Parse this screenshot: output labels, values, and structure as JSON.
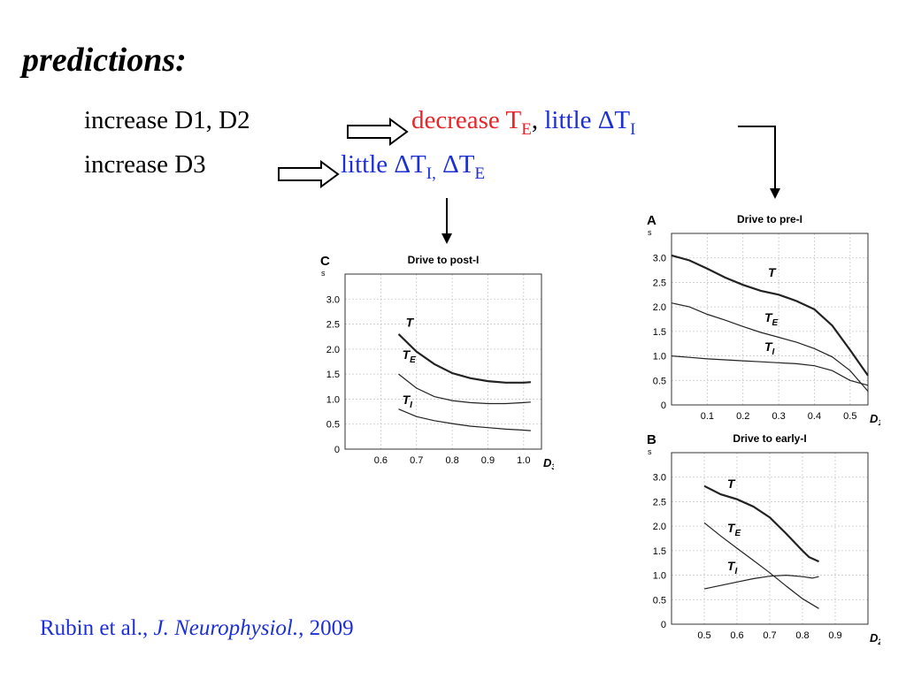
{
  "slide": {
    "heading": "predictions:",
    "bullet1": {
      "glyph": "",
      "text": "increase D1, D2",
      "result_red": "decrease T",
      "result_red_sub": "E",
      "comma": ",",
      "result_blue": "little ΔT",
      "result_blue_sub": "I"
    },
    "bullet2": {
      "glyph": "",
      "text": "increase D3",
      "result_blue1": "little  ΔT",
      "result_blue1_sub": "I,",
      "result_blue2": " ΔT",
      "result_blue2_sub": "E"
    },
    "citation": {
      "authors": "Rubin et al., ",
      "journal": "J. Neurophysiol.",
      "year": ", 2009"
    },
    "colors": {
      "red": "#e8262a",
      "blue": "#1d2fd6"
    }
  },
  "chart_data": [
    {
      "panel": "C",
      "type": "line",
      "title": "Drive to post-I",
      "ylabel": "s",
      "xlabel": "D",
      "xlabel_sub": "3",
      "xlim": [
        0.5,
        1.05
      ],
      "ylim": [
        0,
        3.5
      ],
      "xticks": [
        0.6,
        0.7,
        0.8,
        0.9,
        1.0
      ],
      "yticks": [
        0,
        0.5,
        1.0,
        1.5,
        2.0,
        2.5,
        3.0
      ],
      "grid": true,
      "series": [
        {
          "name": "T",
          "name_sub": "",
          "stroke": 2.2,
          "points": [
            [
              0.65,
              2.3
            ],
            [
              0.7,
              1.95
            ],
            [
              0.75,
              1.7
            ],
            [
              0.8,
              1.52
            ],
            [
              0.85,
              1.42
            ],
            [
              0.9,
              1.36
            ],
            [
              0.95,
              1.33
            ],
            [
              1.0,
              1.33
            ],
            [
              1.02,
              1.34
            ]
          ]
        },
        {
          "name": "T",
          "name_sub": "E",
          "stroke": 1.2,
          "points": [
            [
              0.65,
              1.5
            ],
            [
              0.7,
              1.22
            ],
            [
              0.75,
              1.05
            ],
            [
              0.8,
              0.97
            ],
            [
              0.85,
              0.93
            ],
            [
              0.9,
              0.91
            ],
            [
              0.95,
              0.91
            ],
            [
              1.0,
              0.93
            ],
            [
              1.02,
              0.94
            ]
          ]
        },
        {
          "name": "T",
          "name_sub": "I",
          "stroke": 1.2,
          "points": [
            [
              0.65,
              0.8
            ],
            [
              0.7,
              0.65
            ],
            [
              0.75,
              0.57
            ],
            [
              0.8,
              0.51
            ],
            [
              0.85,
              0.46
            ],
            [
              0.9,
              0.43
            ],
            [
              0.95,
              0.4
            ],
            [
              1.0,
              0.38
            ],
            [
              1.02,
              0.37
            ]
          ]
        }
      ],
      "labels": [
        {
          "series": 0,
          "at": [
            0.67,
            2.45
          ]
        },
        {
          "series": 1,
          "at": [
            0.66,
            1.8
          ]
        },
        {
          "series": 2,
          "at": [
            0.66,
            0.9
          ]
        }
      ]
    },
    {
      "panel": "A",
      "type": "line",
      "title": "Drive to pre-I",
      "ylabel": "s",
      "xlabel": "D",
      "xlabel_sub": "1",
      "xlim": [
        0,
        0.55
      ],
      "ylim": [
        0,
        3.5
      ],
      "xticks": [
        0.1,
        0.2,
        0.3,
        0.4,
        0.5
      ],
      "yticks": [
        0,
        0.5,
        1.0,
        1.5,
        2.0,
        2.5,
        3.0
      ],
      "grid": true,
      "series": [
        {
          "name": "T",
          "name_sub": "",
          "stroke": 2.2,
          "points": [
            [
              0,
              3.05
            ],
            [
              0.05,
              2.95
            ],
            [
              0.1,
              2.78
            ],
            [
              0.15,
              2.6
            ],
            [
              0.2,
              2.45
            ],
            [
              0.25,
              2.33
            ],
            [
              0.3,
              2.25
            ],
            [
              0.35,
              2.12
            ],
            [
              0.4,
              1.95
            ],
            [
              0.45,
              1.62
            ],
            [
              0.5,
              1.12
            ],
            [
              0.55,
              0.6
            ]
          ]
        },
        {
          "name": "T",
          "name_sub": "E",
          "stroke": 1.2,
          "points": [
            [
              0,
              2.08
            ],
            [
              0.05,
              2.0
            ],
            [
              0.1,
              1.85
            ],
            [
              0.15,
              1.73
            ],
            [
              0.2,
              1.6
            ],
            [
              0.25,
              1.48
            ],
            [
              0.3,
              1.38
            ],
            [
              0.35,
              1.28
            ],
            [
              0.4,
              1.15
            ],
            [
              0.45,
              0.98
            ],
            [
              0.5,
              0.7
            ],
            [
              0.55,
              0.28
            ]
          ]
        },
        {
          "name": "T",
          "name_sub": "I",
          "stroke": 1.2,
          "points": [
            [
              0,
              1.0
            ],
            [
              0.05,
              0.97
            ],
            [
              0.1,
              0.94
            ],
            [
              0.15,
              0.92
            ],
            [
              0.2,
              0.9
            ],
            [
              0.25,
              0.88
            ],
            [
              0.3,
              0.86
            ],
            [
              0.35,
              0.84
            ],
            [
              0.4,
              0.8
            ],
            [
              0.45,
              0.7
            ],
            [
              0.5,
              0.5
            ],
            [
              0.55,
              0.4
            ]
          ]
        }
      ],
      "labels": [
        {
          "series": 0,
          "at": [
            0.27,
            2.62
          ]
        },
        {
          "series": 1,
          "at": [
            0.26,
            1.7
          ]
        },
        {
          "series": 2,
          "at": [
            0.26,
            1.1
          ]
        }
      ]
    },
    {
      "panel": "B",
      "type": "line",
      "title": "Drive to early-I",
      "ylabel": "s",
      "xlabel": "D",
      "xlabel_sub": "2",
      "xlim": [
        0.4,
        1.0
      ],
      "ylim": [
        0,
        3.5
      ],
      "xticks": [
        0.5,
        0.6,
        0.7,
        0.8,
        0.9
      ],
      "yticks": [
        0,
        0.5,
        1.0,
        1.5,
        2.0,
        2.5,
        3.0
      ],
      "grid": true,
      "series": [
        {
          "name": "T",
          "name_sub": "",
          "stroke": 2.2,
          "points": [
            [
              0.5,
              2.82
            ],
            [
              0.55,
              2.65
            ],
            [
              0.6,
              2.55
            ],
            [
              0.65,
              2.4
            ],
            [
              0.7,
              2.18
            ],
            [
              0.75,
              1.85
            ],
            [
              0.8,
              1.5
            ],
            [
              0.82,
              1.37
            ],
            [
              0.85,
              1.28
            ]
          ]
        },
        {
          "name": "T",
          "name_sub": "E",
          "stroke": 1.2,
          "points": [
            [
              0.5,
              2.07
            ],
            [
              0.55,
              1.8
            ],
            [
              0.6,
              1.55
            ],
            [
              0.65,
              1.3
            ],
            [
              0.7,
              1.05
            ],
            [
              0.75,
              0.78
            ],
            [
              0.8,
              0.52
            ],
            [
              0.85,
              0.32
            ]
          ]
        },
        {
          "name": "T",
          "name_sub": "I",
          "stroke": 1.2,
          "points": [
            [
              0.5,
              0.72
            ],
            [
              0.55,
              0.79
            ],
            [
              0.6,
              0.86
            ],
            [
              0.65,
              0.93
            ],
            [
              0.7,
              0.98
            ],
            [
              0.75,
              1.0
            ],
            [
              0.8,
              0.97
            ],
            [
              0.83,
              0.94
            ],
            [
              0.85,
              0.97
            ]
          ]
        }
      ],
      "labels": [
        {
          "series": 0,
          "at": [
            0.57,
            2.78
          ]
        },
        {
          "series": 1,
          "at": [
            0.57,
            1.88
          ]
        },
        {
          "series": 2,
          "at": [
            0.57,
            1.1
          ]
        }
      ]
    }
  ]
}
